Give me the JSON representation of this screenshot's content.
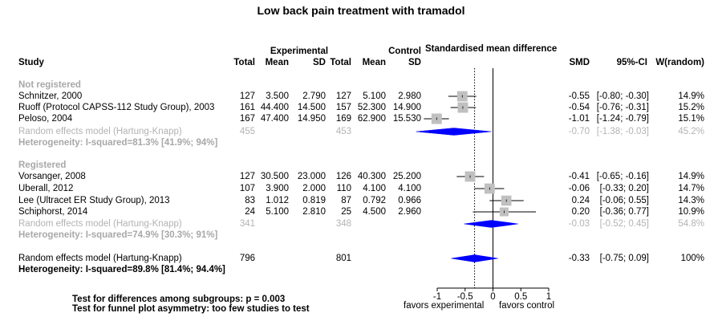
{
  "title": "Low back pain treatment with tramadol",
  "headers": {
    "study": "Study",
    "experimental": "Experimental",
    "control": "Control",
    "smd_group": "Standardised mean difference",
    "total": "Total",
    "mean": "Mean",
    "sd": "SD",
    "smd": "SMD",
    "ci": "95%-CI",
    "weight": "W(random)"
  },
  "subgroups": [
    {
      "label": "Not registered",
      "studies": [
        {
          "name": "Schnitzer, 2000",
          "e_total": "127",
          "e_mean": "3.500",
          "e_sd": "2.790",
          "c_total": "127",
          "c_mean": "5.100",
          "c_sd": "2.980",
          "smd": "-0.55",
          "ci": "[-0.80; -0.30]",
          "weight": "14.9%"
        },
        {
          "name": "Ruoff  (Protocol CAPSS-112 Study Group), 2003",
          "e_total": "161",
          "e_mean": "44.400",
          "e_sd": "14.500",
          "c_total": "157",
          "c_mean": "52.300",
          "c_sd": "14.900",
          "smd": "-0.54",
          "ci": "[-0.76; -0.31]",
          "weight": "15.2%"
        },
        {
          "name": "Peloso, 2004",
          "e_total": "167",
          "e_mean": "47.400",
          "e_sd": "14.950",
          "c_total": "169",
          "c_mean": "62.900",
          "c_sd": "15.530",
          "smd": "-1.01",
          "ci": "[-1.24; -0.79]",
          "weight": "15.1%"
        }
      ],
      "model": {
        "label": "Random effects model  (Hartung-Knapp)",
        "e_total": "455",
        "c_total": "453",
        "smd": "-0.70",
        "ci": "[-1.38; -0.03]",
        "weight": "45.2%"
      },
      "heterogeneity": "Heterogeneity: I-squared=81.3% [41.9%; 94%]"
    },
    {
      "label": "Registered",
      "studies": [
        {
          "name": "Vorsanger, 2008",
          "e_total": "127",
          "e_mean": "30.500",
          "e_sd": "23.000",
          "c_total": "126",
          "c_mean": "40.300",
          "c_sd": "25.200",
          "smd": "-0.41",
          "ci": "[-0.65; -0.16]",
          "weight": "14.9%"
        },
        {
          "name": "Uberall, 2012",
          "e_total": "107",
          "e_mean": "3.900",
          "e_sd": "2.000",
          "c_total": "110",
          "c_mean": "4.100",
          "c_sd": "4.100",
          "smd": "-0.06",
          "ci": "[-0.33; 0.20]",
          "weight": "14.7%"
        },
        {
          "name": "Lee (Ultracet ER Study Group), 2013",
          "e_total": "83",
          "e_mean": "1.012",
          "e_sd": "0.819",
          "c_total": "87",
          "c_mean": "0.792",
          "c_sd": "0.966",
          "smd": "0.24",
          "ci": "[-0.06; 0.55]",
          "weight": "14.3%"
        },
        {
          "name": "Schiphorst, 2014",
          "e_total": "24",
          "e_mean": "5.100",
          "e_sd": "2.810",
          "c_total": "25",
          "c_mean": "4.500",
          "c_sd": "2.960",
          "smd": "0.20",
          "ci": "[-0.36; 0.77]",
          "weight": "10.9%"
        }
      ],
      "model": {
        "label": "Random effects model  (Hartung-Knapp)",
        "e_total": "341",
        "c_total": "348",
        "smd": "-0.03",
        "ci": "[-0.52; 0.45]",
        "weight": "54.8%"
      },
      "heterogeneity": "Heterogeneity: I-squared=74.9% [30.3%; 91%]"
    }
  ],
  "overall": {
    "label": "Random effects model  (Hartung-Knapp)",
    "e_total": "796",
    "c_total": "801",
    "smd": "-0.33",
    "ci": "[-0.75; 0.09]",
    "weight": "100%",
    "heterogeneity": "Heterogeneity: I-squared=89.8% [81.4%; 94.4%]"
  },
  "tests": [
    "Test for differences among subgroups: p = 0.003",
    "Test for funnel plot asymmetry: too few studies to test"
  ],
  "axis": {
    "ticks": [
      -1,
      -0.5,
      0,
      0.5,
      1
    ],
    "tick_labels": [
      "-1",
      "-0.5",
      "0",
      "0.5",
      "1"
    ],
    "left_label": "favors experimental",
    "right_label": "favors control"
  },
  "colors": {
    "diamond": "#0000ff",
    "square": "#c0c0c0",
    "muted_text": "#b3b3b3"
  },
  "chart_data": {
    "type": "scatter",
    "title": "Low back pain treatment with tramadol",
    "xlim": [
      -1,
      1
    ],
    "null_value": 0,
    "overall_reference": -0.33,
    "studies": [
      {
        "name": "Schnitzer, 2000",
        "smd": -0.55,
        "lower": -0.8,
        "upper": -0.3,
        "weight": 14.9
      },
      {
        "name": "Ruoff  (Protocol CAPSS-112 Study Group), 2003",
        "smd": -0.54,
        "lower": -0.76,
        "upper": -0.31,
        "weight": 15.2
      },
      {
        "name": "Peloso, 2004",
        "smd": -1.01,
        "lower": -1.24,
        "upper": -0.79,
        "weight": 15.1
      },
      {
        "name": "Vorsanger, 2008",
        "smd": -0.41,
        "lower": -0.65,
        "upper": -0.16,
        "weight": 14.9
      },
      {
        "name": "Uberall, 2012",
        "smd": -0.06,
        "lower": -0.33,
        "upper": 0.2,
        "weight": 14.7
      },
      {
        "name": "Lee (Ultracet ER Study Group), 2013",
        "smd": 0.24,
        "lower": -0.06,
        "upper": 0.55,
        "weight": 14.3
      },
      {
        "name": "Schiphorst, 2014",
        "smd": 0.2,
        "lower": -0.36,
        "upper": 0.77,
        "weight": 10.9
      }
    ],
    "pooled": [
      {
        "name": "Not registered",
        "smd": -0.7,
        "lower": -1.38,
        "upper": -0.03,
        "weight": 45.2
      },
      {
        "name": "Registered",
        "smd": -0.03,
        "lower": -0.52,
        "upper": 0.45,
        "weight": 54.8
      },
      {
        "name": "Overall",
        "smd": -0.33,
        "lower": -0.75,
        "upper": 0.09,
        "weight": 100
      }
    ]
  }
}
